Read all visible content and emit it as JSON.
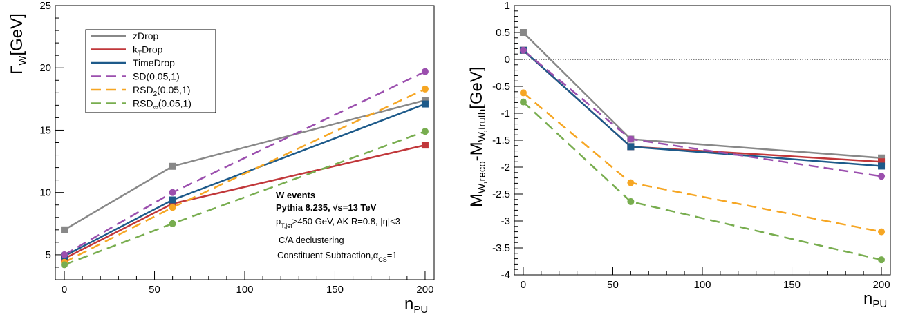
{
  "chart_data": [
    {
      "type": "line",
      "ylabel": "Γ_W[GeV]",
      "xlabel": "n_PU",
      "xlim": [
        -5,
        205
      ],
      "ylim": [
        3,
        25
      ],
      "xticks": [
        "0",
        "50",
        "100",
        "150",
        "200"
      ],
      "yticks": [
        "5",
        "10",
        "15",
        "20",
        "25"
      ],
      "x": [
        0,
        60,
        200
      ],
      "legend_position": "top-left",
      "series": [
        {
          "name": "zDrop",
          "color": "#888888",
          "dash": false,
          "marker": "square",
          "values": [
            7.0,
            12.1,
            17.4
          ]
        },
        {
          "name": "k_T Drop",
          "color": "#c1373a",
          "dash": false,
          "marker": "square",
          "values": [
            4.7,
            9.1,
            13.8
          ]
        },
        {
          "name": "TimeDrop",
          "color": "#1d5a8a",
          "dash": false,
          "marker": "square",
          "values": [
            4.9,
            9.4,
            17.1
          ]
        },
        {
          "name": "SD(0.05,1)",
          "color": "#9b4fae",
          "dash": true,
          "marker": "circle",
          "values": [
            5.0,
            10.0,
            19.7
          ]
        },
        {
          "name": "RSD_2(0.05,1)",
          "color": "#f6a623",
          "dash": true,
          "marker": "circle",
          "values": [
            4.4,
            8.8,
            18.3
          ]
        },
        {
          "name": "RSD_∞(0.05,1)",
          "color": "#78ad4f",
          "dash": true,
          "marker": "circle",
          "values": [
            4.2,
            7.5,
            14.9
          ]
        }
      ],
      "annotations": [
        "W events",
        "Pythia 8.235, √s=13 TeV",
        "p_T,jet>450 GeV, AK R=0.8, |η|<3",
        "C/A declustering",
        "Constituent Subtraction,α_CS=1"
      ]
    },
    {
      "type": "line",
      "ylabel": "M_W,reco-M_W,truth[GeV]",
      "xlabel": "n_PU",
      "xlim": [
        -5,
        205
      ],
      "ylim": [
        -4,
        1
      ],
      "xticks": [
        "0",
        "50",
        "100",
        "150",
        "200"
      ],
      "yticks": [
        "-4",
        "-3.5",
        "-3",
        "-2.5",
        "-2",
        "-1.5",
        "-1",
        "-0.5",
        "0",
        "0.5",
        "1"
      ],
      "x": [
        0,
        60,
        200
      ],
      "reference_line": 0,
      "series": [
        {
          "name": "zDrop",
          "color": "#888888",
          "dash": false,
          "marker": "square",
          "values": [
            0.5,
            -1.48,
            -1.83
          ]
        },
        {
          "name": "k_T Drop",
          "color": "#c1373a",
          "dash": false,
          "marker": "square",
          "values": [
            0.17,
            -1.62,
            -1.9
          ]
        },
        {
          "name": "TimeDrop",
          "color": "#1d5a8a",
          "dash": false,
          "marker": "square",
          "values": [
            0.17,
            -1.62,
            -1.98
          ]
        },
        {
          "name": "SD(0.05,1)",
          "color": "#9b4fae",
          "dash": true,
          "marker": "circle",
          "values": [
            0.17,
            -1.48,
            -2.17
          ]
        },
        {
          "name": "RSD_2(0.05,1)",
          "color": "#f6a623",
          "dash": true,
          "marker": "circle",
          "values": [
            -0.62,
            -2.29,
            -3.2
          ]
        },
        {
          "name": "RSD_∞(0.05,1)",
          "color": "#78ad4f",
          "dash": true,
          "marker": "circle",
          "values": [
            -0.79,
            -2.64,
            -3.72
          ]
        }
      ]
    }
  ]
}
